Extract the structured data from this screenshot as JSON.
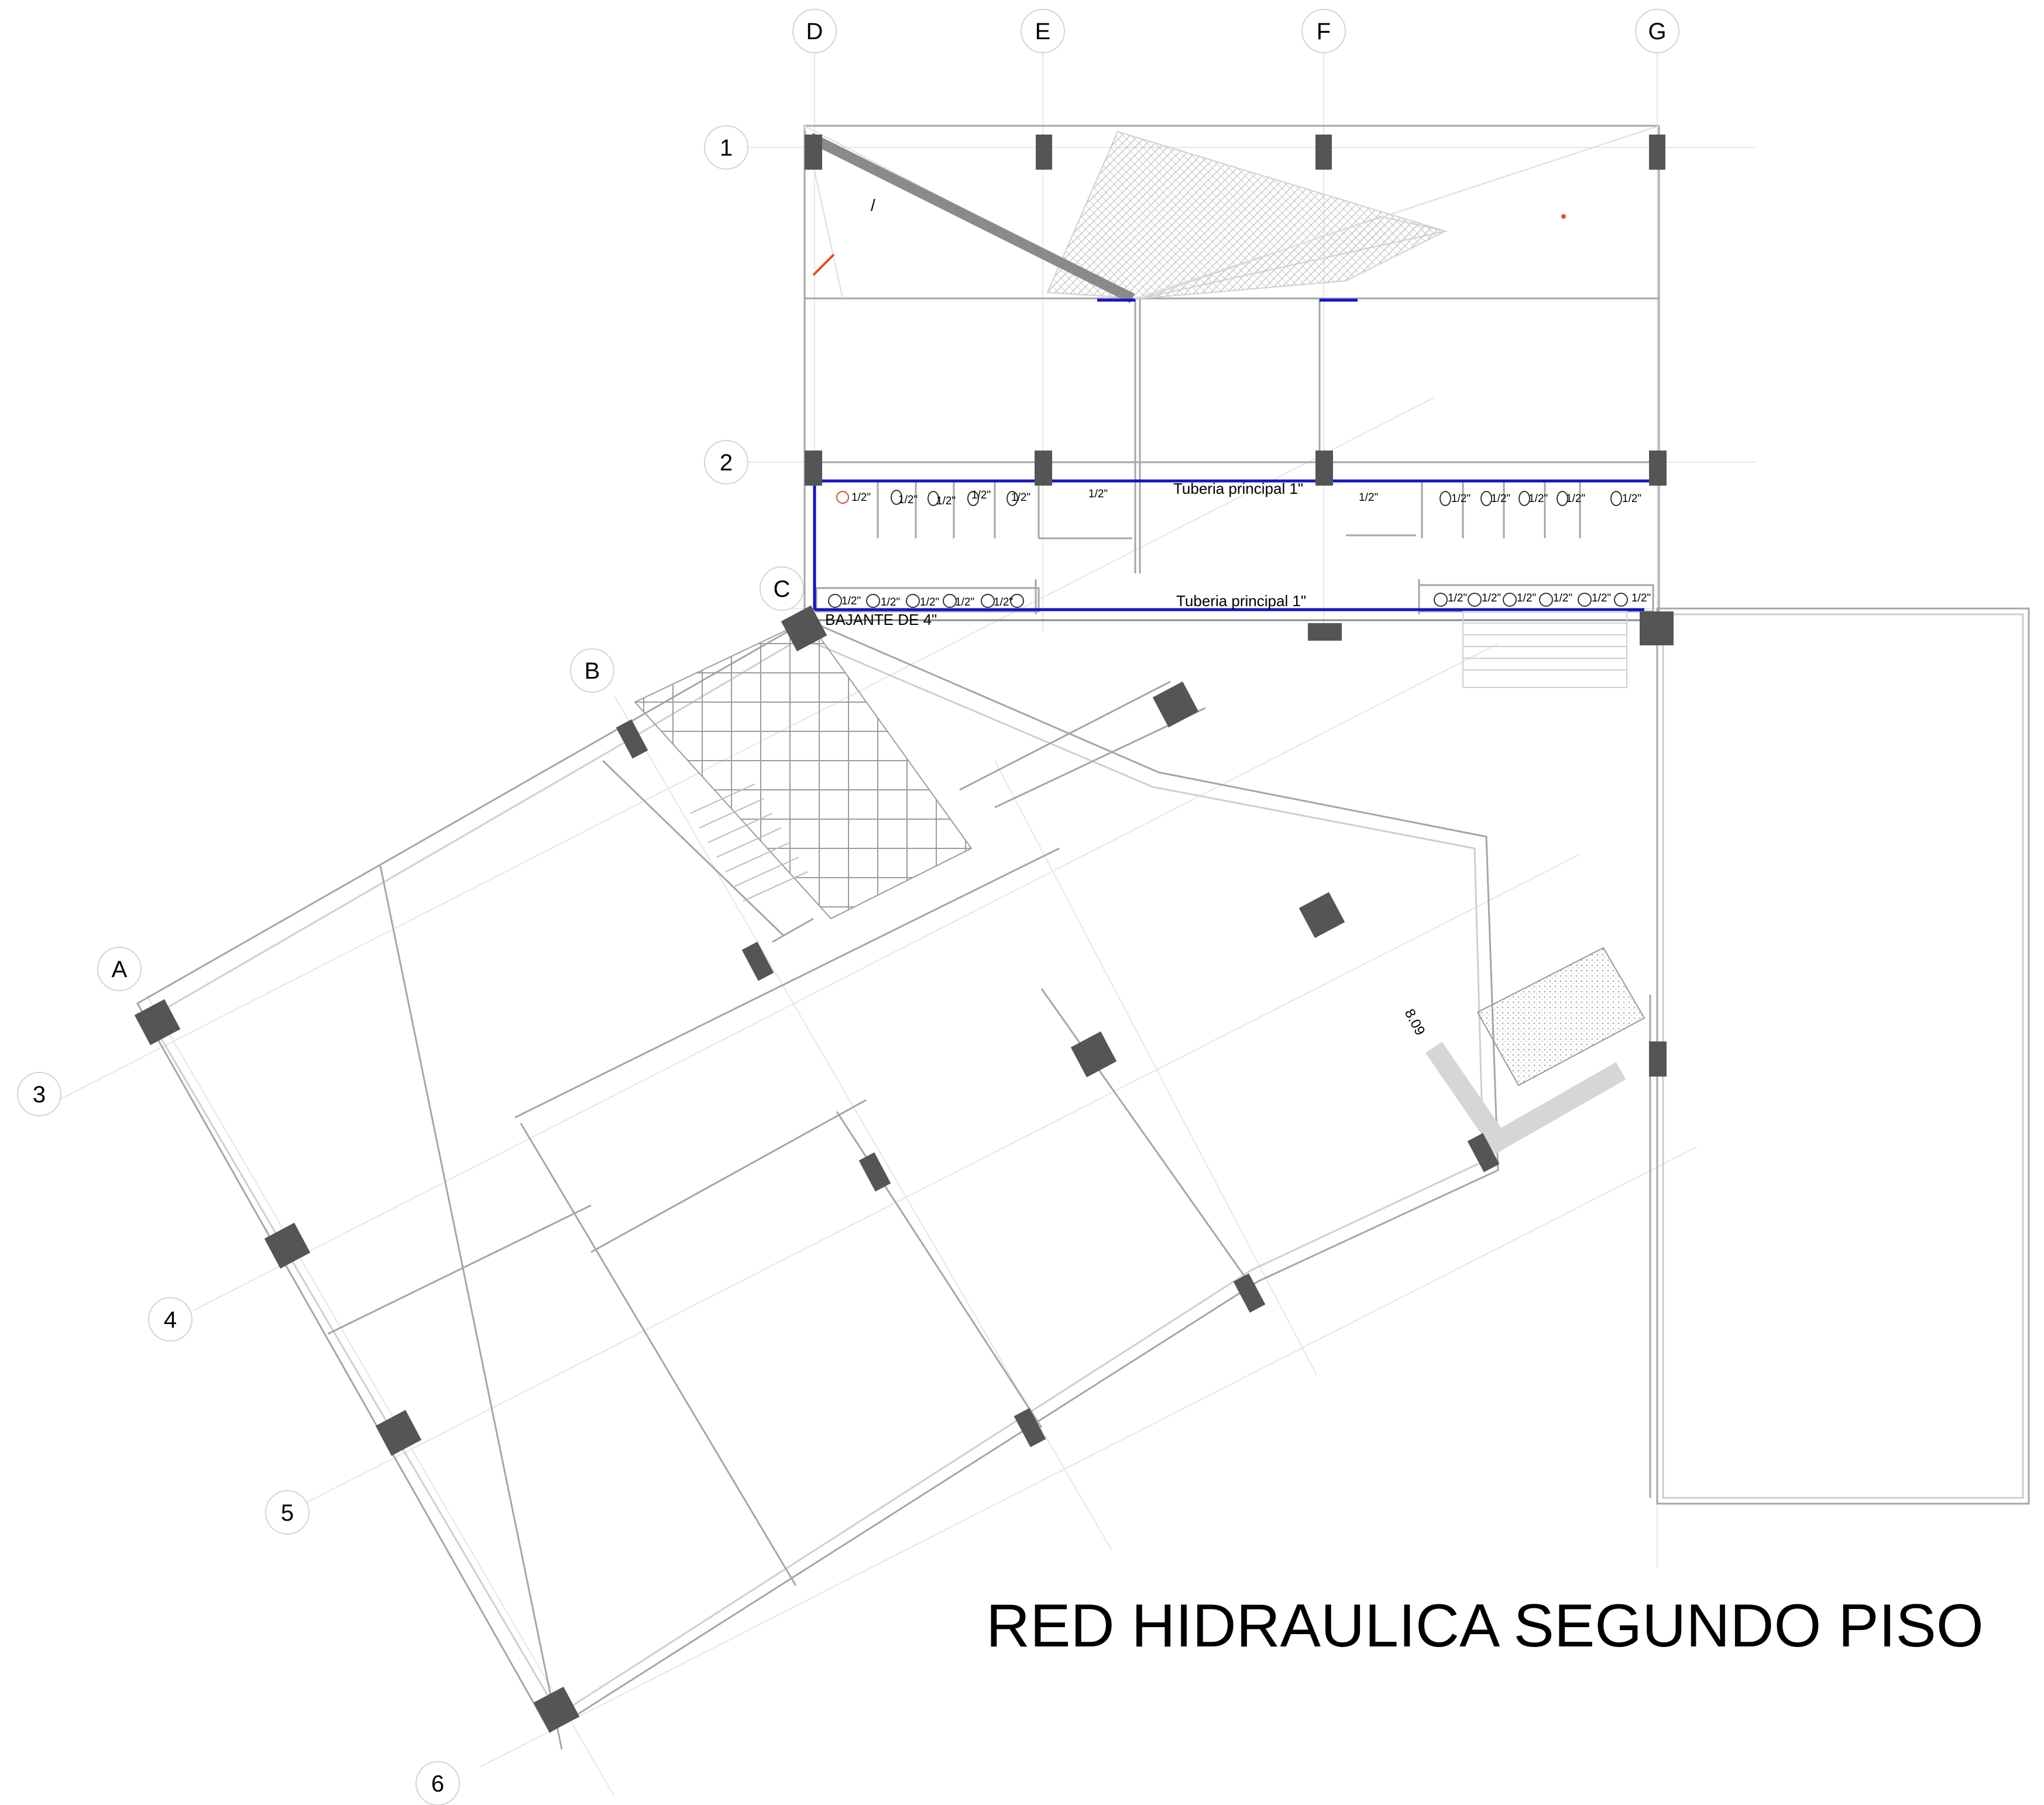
{
  "title": "RED HIDRAULICA SEGUNDO PISO",
  "grid_letters": [
    "D",
    "E",
    "F",
    "G",
    "C",
    "B",
    "A"
  ],
  "grid_numbers": [
    "1",
    "2",
    "3",
    "4",
    "5",
    "6"
  ],
  "annotations": {
    "main_pipe_upper": "Tuberia principal 1\"",
    "main_pipe_lower": "Tuberia principal 1\"",
    "downspout": "BAJANTE DE 4\"",
    "branch": "1/2\"",
    "dimension_note": "8.09",
    "slash_mark": "/"
  },
  "colors": {
    "pipe": "#1414c8",
    "column": "#555555",
    "wall": "#9a9a9a",
    "grid_line": "#e6e6e6",
    "accent": "#e6501e",
    "hatch": "#bdbdbd"
  }
}
